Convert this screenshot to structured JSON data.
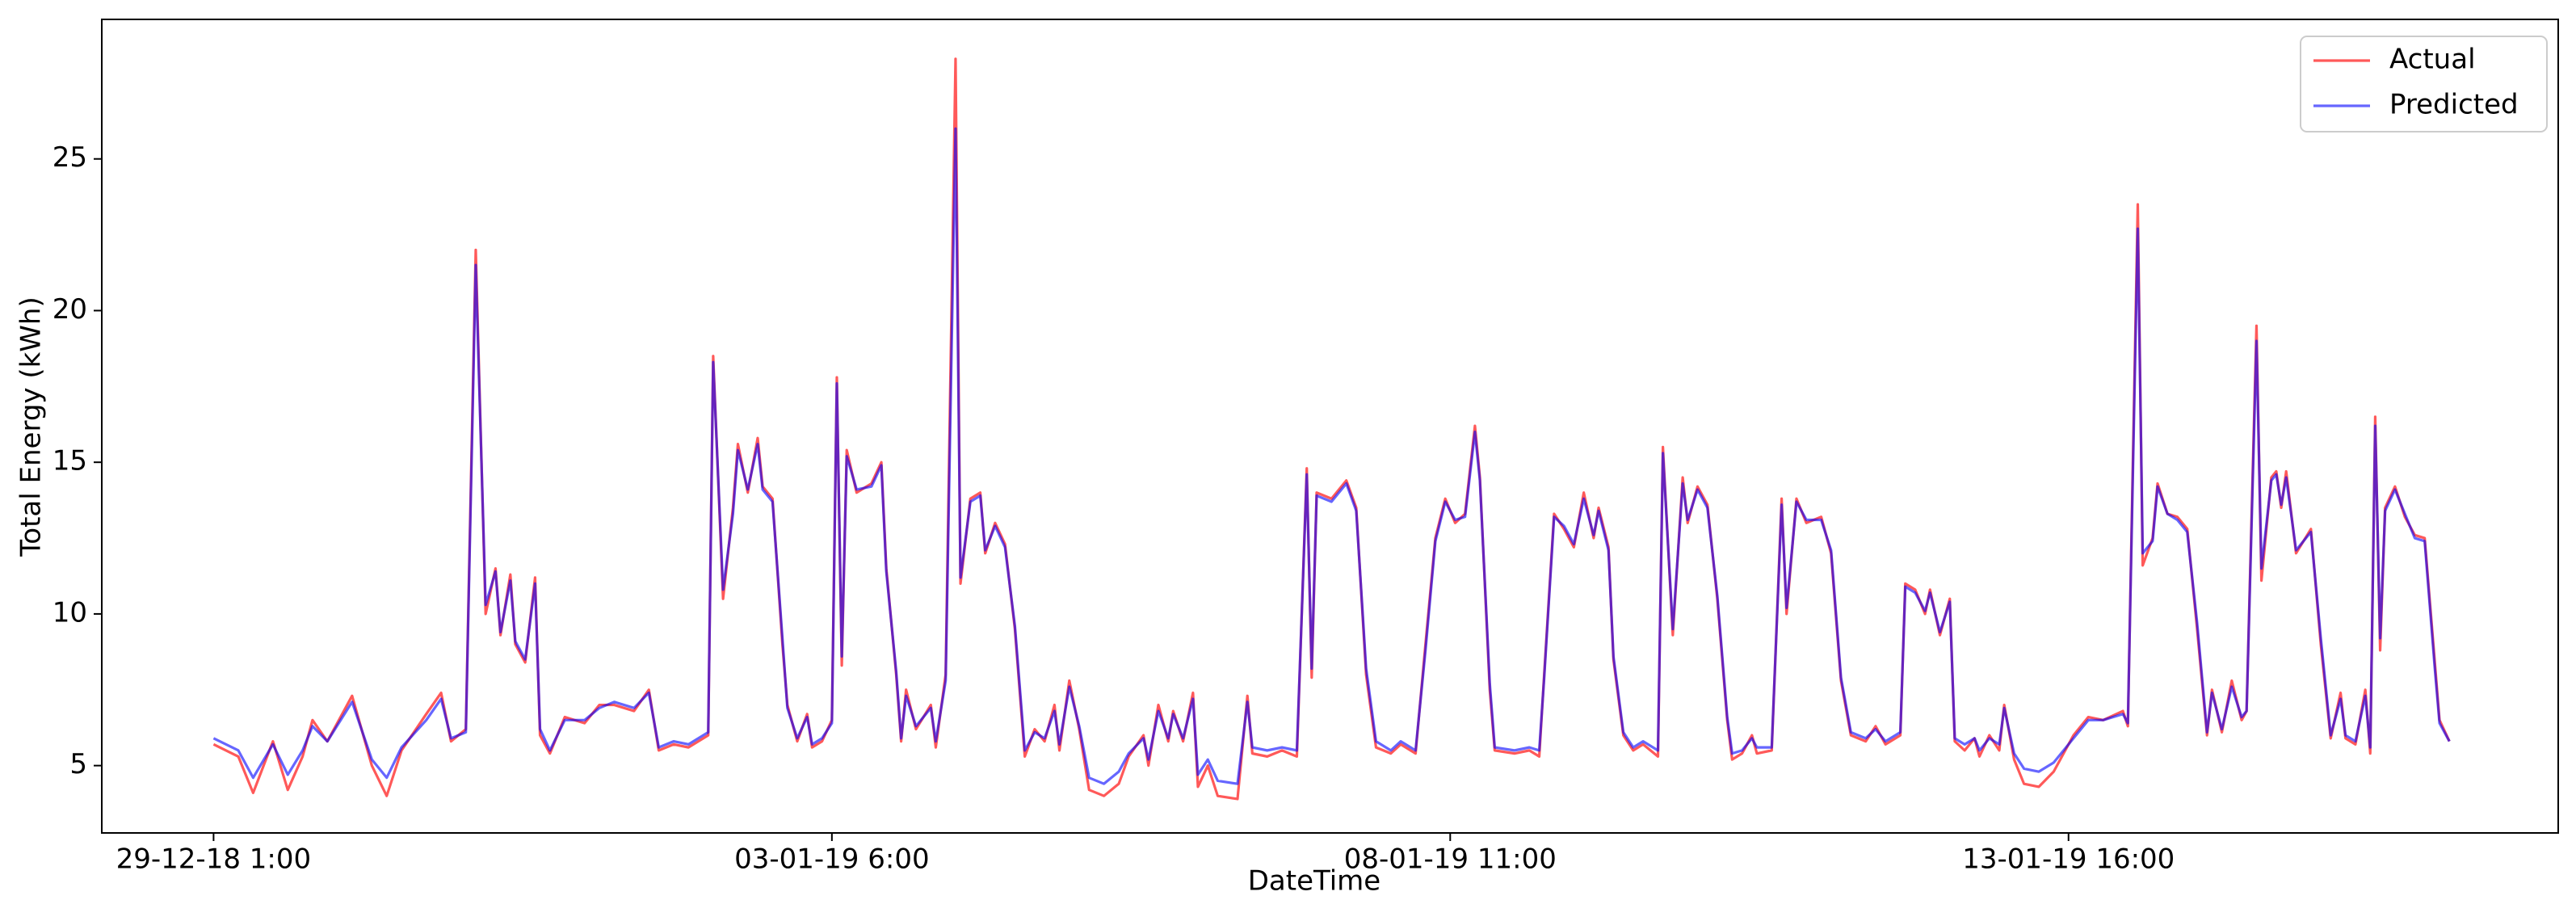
{
  "chart_data": {
    "type": "line",
    "xlabel": "DateTime",
    "ylabel": "Total Energy (kWh)",
    "xlim": [
      -22.6,
      474
    ],
    "ylim": [
      2.78,
      29.6
    ],
    "xticks": [
      {
        "value": 0,
        "label": "29-12-18 1:00"
      },
      {
        "value": 125,
        "label": "03-01-19 6:00"
      },
      {
        "value": 250,
        "label": "08-01-19 11:00"
      },
      {
        "value": 375,
        "label": "13-01-19 16:00"
      }
    ],
    "yticks": [
      5,
      10,
      15,
      20,
      25
    ],
    "legend": "upper right",
    "x": [
      0,
      5,
      8,
      12,
      15,
      18,
      20,
      23,
      28,
      32,
      35,
      38,
      43,
      46,
      48,
      51,
      53,
      55,
      57,
      58,
      60,
      61,
      63,
      65,
      66,
      68,
      71,
      75,
      78,
      81,
      85,
      88,
      90,
      93,
      96,
      100,
      101,
      103,
      105,
      106,
      108,
      110,
      111,
      113,
      115,
      116,
      118,
      120,
      121,
      123,
      125,
      126,
      127,
      128,
      130,
      133,
      135,
      136,
      138,
      139,
      140,
      142,
      145,
      146,
      148,
      150,
      151,
      153,
      155,
      156,
      158,
      160,
      162,
      164,
      166,
      168,
      170,
      171,
      173,
      175,
      177,
      180,
      183,
      185,
      188,
      189,
      191,
      193,
      194,
      196,
      198,
      199,
      201,
      203,
      207,
      209,
      210,
      213,
      216,
      219,
      221,
      222,
      223,
      226,
      229,
      231,
      233,
      235,
      238,
      240,
      243,
      245,
      247,
      249,
      251,
      253,
      255,
      256,
      258,
      259,
      263,
      266,
      268,
      269,
      271,
      273,
      275,
      277,
      279,
      280,
      282,
      283,
      285,
      287,
      289,
      292,
      293,
      295,
      297,
      298,
      300,
      302,
      304,
      306,
      307,
      309,
      311,
      312,
      315,
      317,
      318,
      320,
      322,
      325,
      327,
      329,
      331,
      334,
      336,
      338,
      341,
      342,
      344,
      346,
      347,
      349,
      351,
      352,
      354,
      356,
      357,
      359,
      361,
      362,
      364,
      366,
      369,
      372,
      376,
      379,
      382,
      386,
      387,
      389,
      390,
      392,
      393,
      395,
      397,
      399,
      401,
      403,
      404,
      406,
      408,
      410,
      411,
      413,
      414,
      416,
      417,
      418,
      419,
      421,
      424,
      426,
      428,
      430,
      431,
      433,
      435,
      436,
      437,
      438,
      439,
      441,
      443,
      445,
      447,
      449,
      450,
      452
    ],
    "series": [
      {
        "name": "Actual",
        "color": "#ff0000",
        "values": [
          5.7,
          5.3,
          4.1,
          5.8,
          4.2,
          5.3,
          6.5,
          5.8,
          7.3,
          5.0,
          4.0,
          5.5,
          6.7,
          7.4,
          5.8,
          6.2,
          22.0,
          10,
          11.5,
          9.3,
          11.3,
          9.0,
          8.4,
          11.2,
          6.0,
          5.4,
          6.6,
          6.4,
          7.0,
          7.0,
          6.8,
          7.5,
          5.5,
          5.7,
          5.6,
          6.0,
          18.5,
          10.5,
          13.5,
          15.6,
          14.0,
          15.8,
          14.2,
          13.8,
          9.0,
          7.0,
          5.8,
          6.7,
          5.6,
          5.8,
          6.5,
          17.8,
          8.3,
          15.4,
          14.0,
          14.3,
          15.0,
          11.5,
          8.0,
          5.8,
          7.5,
          6.2,
          7.0,
          5.6,
          8.0,
          28.3,
          11.0,
          13.8,
          14.0,
          12.0,
          13.0,
          12.3,
          9.5,
          5.3,
          6.2,
          5.8,
          7.0,
          5.5,
          7.8,
          6.2,
          4.2,
          4.0,
          4.4,
          5.3,
          6.0,
          5.0,
          7.0,
          5.8,
          6.8,
          5.8,
          7.4,
          4.3,
          5.0,
          4.0,
          3.9,
          7.3,
          5.4,
          5.3,
          5.5,
          5.3,
          14.8,
          7.9,
          14.0,
          13.8,
          14.4,
          13.5,
          8.0,
          5.6,
          5.4,
          5.7,
          5.4,
          9.0,
          12.5,
          13.8,
          13.0,
          13.3,
          16.2,
          14.5,
          7.5,
          5.5,
          5.4,
          5.5,
          5.3,
          8.0,
          13.3,
          12.8,
          12.2,
          14.0,
          12.5,
          13.5,
          12.2,
          8.5,
          6.0,
          5.5,
          5.7,
          5.3,
          15.5,
          9.3,
          14.5,
          13.0,
          14.2,
          13.6,
          10.5,
          6.5,
          5.2,
          5.4,
          6.0,
          5.4,
          5.5,
          13.8,
          10.0,
          13.8,
          13.0,
          13.2,
          12.0,
          7.8,
          6.0,
          5.8,
          6.3,
          5.7,
          6.0,
          11.0,
          10.8,
          10.0,
          10.8,
          9.3,
          10.5,
          5.8,
          5.5,
          5.9,
          5.3,
          6.0,
          5.5,
          7.0,
          5.2,
          4.4,
          4.3,
          4.8,
          6.0,
          6.6,
          6.5,
          6.8,
          6.3,
          23.5,
          11.6,
          12.5,
          14.3,
          13.3,
          13.2,
          12.8,
          9.5,
          6.0,
          7.5,
          6.1,
          7.8,
          6.5,
          6.8,
          19.5,
          11.1,
          14.5,
          14.7,
          13.5,
          14.7,
          12.0,
          12.8,
          9.0,
          5.9,
          7.4,
          5.9,
          5.7,
          7.5,
          5.4,
          16.5,
          8.8,
          13.5,
          14.2,
          13.2,
          12.6,
          12.5,
          8.5,
          6.5,
          5.8
        ]
      },
      {
        "name": "Predicted",
        "color": "#0000ff",
        "values": [
          5.9,
          5.5,
          4.6,
          5.7,
          4.7,
          5.5,
          6.3,
          5.8,
          7.1,
          5.2,
          4.6,
          5.6,
          6.5,
          7.2,
          5.9,
          6.1,
          21.5,
          10.3,
          11.4,
          9.4,
          11.1,
          9.1,
          8.5,
          11.0,
          6.2,
          5.5,
          6.5,
          6.5,
          6.9,
          7.1,
          6.9,
          7.4,
          5.6,
          5.8,
          5.7,
          6.1,
          18.3,
          10.8,
          13.3,
          15.4,
          14.1,
          15.6,
          14.1,
          13.7,
          9.2,
          6.9,
          5.9,
          6.6,
          5.7,
          5.9,
          6.4,
          17.6,
          8.6,
          15.2,
          14.1,
          14.2,
          14.9,
          11.4,
          8.1,
          5.9,
          7.3,
          6.3,
          6.9,
          5.8,
          7.8,
          26.0,
          11.2,
          13.7,
          13.9,
          12.1,
          12.9,
          12.2,
          9.6,
          5.5,
          6.1,
          5.9,
          6.8,
          5.7,
          7.6,
          6.3,
          4.6,
          4.4,
          4.8,
          5.4,
          5.9,
          5.2,
          6.8,
          5.9,
          6.7,
          5.9,
          7.2,
          4.7,
          5.2,
          4.5,
          4.4,
          7.1,
          5.6,
          5.5,
          5.6,
          5.5,
          14.6,
          8.2,
          13.9,
          13.7,
          14.3,
          13.4,
          8.2,
          5.8,
          5.5,
          5.8,
          5.5,
          8.8,
          12.4,
          13.7,
          13.1,
          13.2,
          16.0,
          14.4,
          7.7,
          5.6,
          5.5,
          5.6,
          5.5,
          7.9,
          13.2,
          12.9,
          12.3,
          13.8,
          12.6,
          13.4,
          12.1,
          8.6,
          6.1,
          5.6,
          5.8,
          5.5,
          15.3,
          9.5,
          14.3,
          13.1,
          14.1,
          13.5,
          10.6,
          6.6,
          5.4,
          5.5,
          5.9,
          5.6,
          5.6,
          13.6,
          10.2,
          13.7,
          13.1,
          13.1,
          12.1,
          7.9,
          6.1,
          5.9,
          6.2,
          5.8,
          6.1,
          10.9,
          10.7,
          10.1,
          10.7,
          9.4,
          10.4,
          5.9,
          5.7,
          5.9,
          5.5,
          5.9,
          5.7,
          6.9,
          5.4,
          4.9,
          4.8,
          5.1,
          5.9,
          6.5,
          6.5,
          6.7,
          6.4,
          22.7,
          12.0,
          12.4,
          14.2,
          13.3,
          13.1,
          12.7,
          9.7,
          6.1,
          7.4,
          6.2,
          7.6,
          6.6,
          6.8,
          19.0,
          11.5,
          14.4,
          14.6,
          13.6,
          14.5,
          12.1,
          12.7,
          9.2,
          6.0,
          7.2,
          6.0,
          5.8,
          7.3,
          5.6,
          16.2,
          9.2,
          13.4,
          14.1,
          13.3,
          12.5,
          12.4,
          8.3,
          6.4,
          5.8
        ]
      }
    ]
  }
}
